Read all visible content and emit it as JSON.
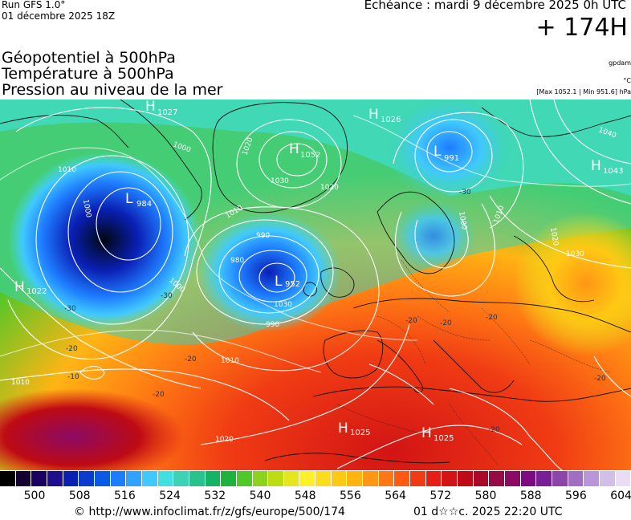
{
  "header": {
    "run_label": "Run GFS 1.0°",
    "run_date": "01 décembre 2025 18Z",
    "echeance": "Echéance : mardi 9 décembre 2025 0h UTC",
    "horizon": "+ 174H",
    "titles": [
      "Géopotentiel à 500hPa",
      "Température à 500hPa",
      "Pression au niveau de la mer"
    ],
    "units": [
      "gpdam",
      "°C",
      "[Max 1052.1 | Min 951.6] hPa"
    ]
  },
  "pressure_centers": [
    {
      "type": "H",
      "value": "1027"
    },
    {
      "type": "H",
      "value": "1026"
    },
    {
      "type": "H",
      "value": "1052"
    },
    {
      "type": "L",
      "value": "991"
    },
    {
      "type": "H",
      "value": "1043"
    },
    {
      "type": "L",
      "value": "984"
    },
    {
      "type": "L",
      "value": "952"
    },
    {
      "type": "H",
      "value": "1022"
    },
    {
      "type": "H",
      "value": "1025"
    },
    {
      "type": "H",
      "value": "1025"
    }
  ],
  "isobar_labels": [
    "1020",
    "1030",
    "1010",
    "1000",
    "990",
    "980",
    "990",
    "1000",
    "1010",
    "1020",
    "1030",
    "1040",
    "1000",
    "1010",
    "1020",
    "1010",
    "1010",
    "1020",
    "1030",
    "1000"
  ],
  "temperature_labels": [
    "-30",
    "-20",
    "-10",
    "-20",
    "-30",
    "-20",
    "-20",
    "-20",
    "-20",
    "-30",
    "-20",
    "-20"
  ],
  "legend": {
    "colors": [
      "#000000",
      "#14002e",
      "#1a0060",
      "#1e0f8f",
      "#0a1fb4",
      "#0a3ccd",
      "#0a5ae6",
      "#1e7dff",
      "#2fa3ff",
      "#40c8ff",
      "#40e0e0",
      "#3cd2b4",
      "#28c38c",
      "#14b464",
      "#1eb43c",
      "#50c828",
      "#8cd21e",
      "#bedc14",
      "#e6e61e",
      "#fff028",
      "#ffdc1e",
      "#ffc814",
      "#ffb414",
      "#ff9614",
      "#ff7814",
      "#ff5a14",
      "#f03c14",
      "#e61e14",
      "#d21414",
      "#be0a14",
      "#aa0a28",
      "#960a46",
      "#8c0a64",
      "#7d0a82",
      "#781e96",
      "#8c46aa",
      "#a06ec3",
      "#b996d7",
      "#d2bee6",
      "#ebdcf5"
    ],
    "labels": [
      "500",
      "508",
      "516",
      "524",
      "532",
      "540",
      "548",
      "556",
      "564",
      "572",
      "580",
      "588",
      "596",
      "604"
    ]
  },
  "footer": {
    "copyright": "© http://www.infoclimat.fr/z/gfs/europe/500/174",
    "generated": "01 d☆☆c. 2025 22:20 UTC"
  }
}
